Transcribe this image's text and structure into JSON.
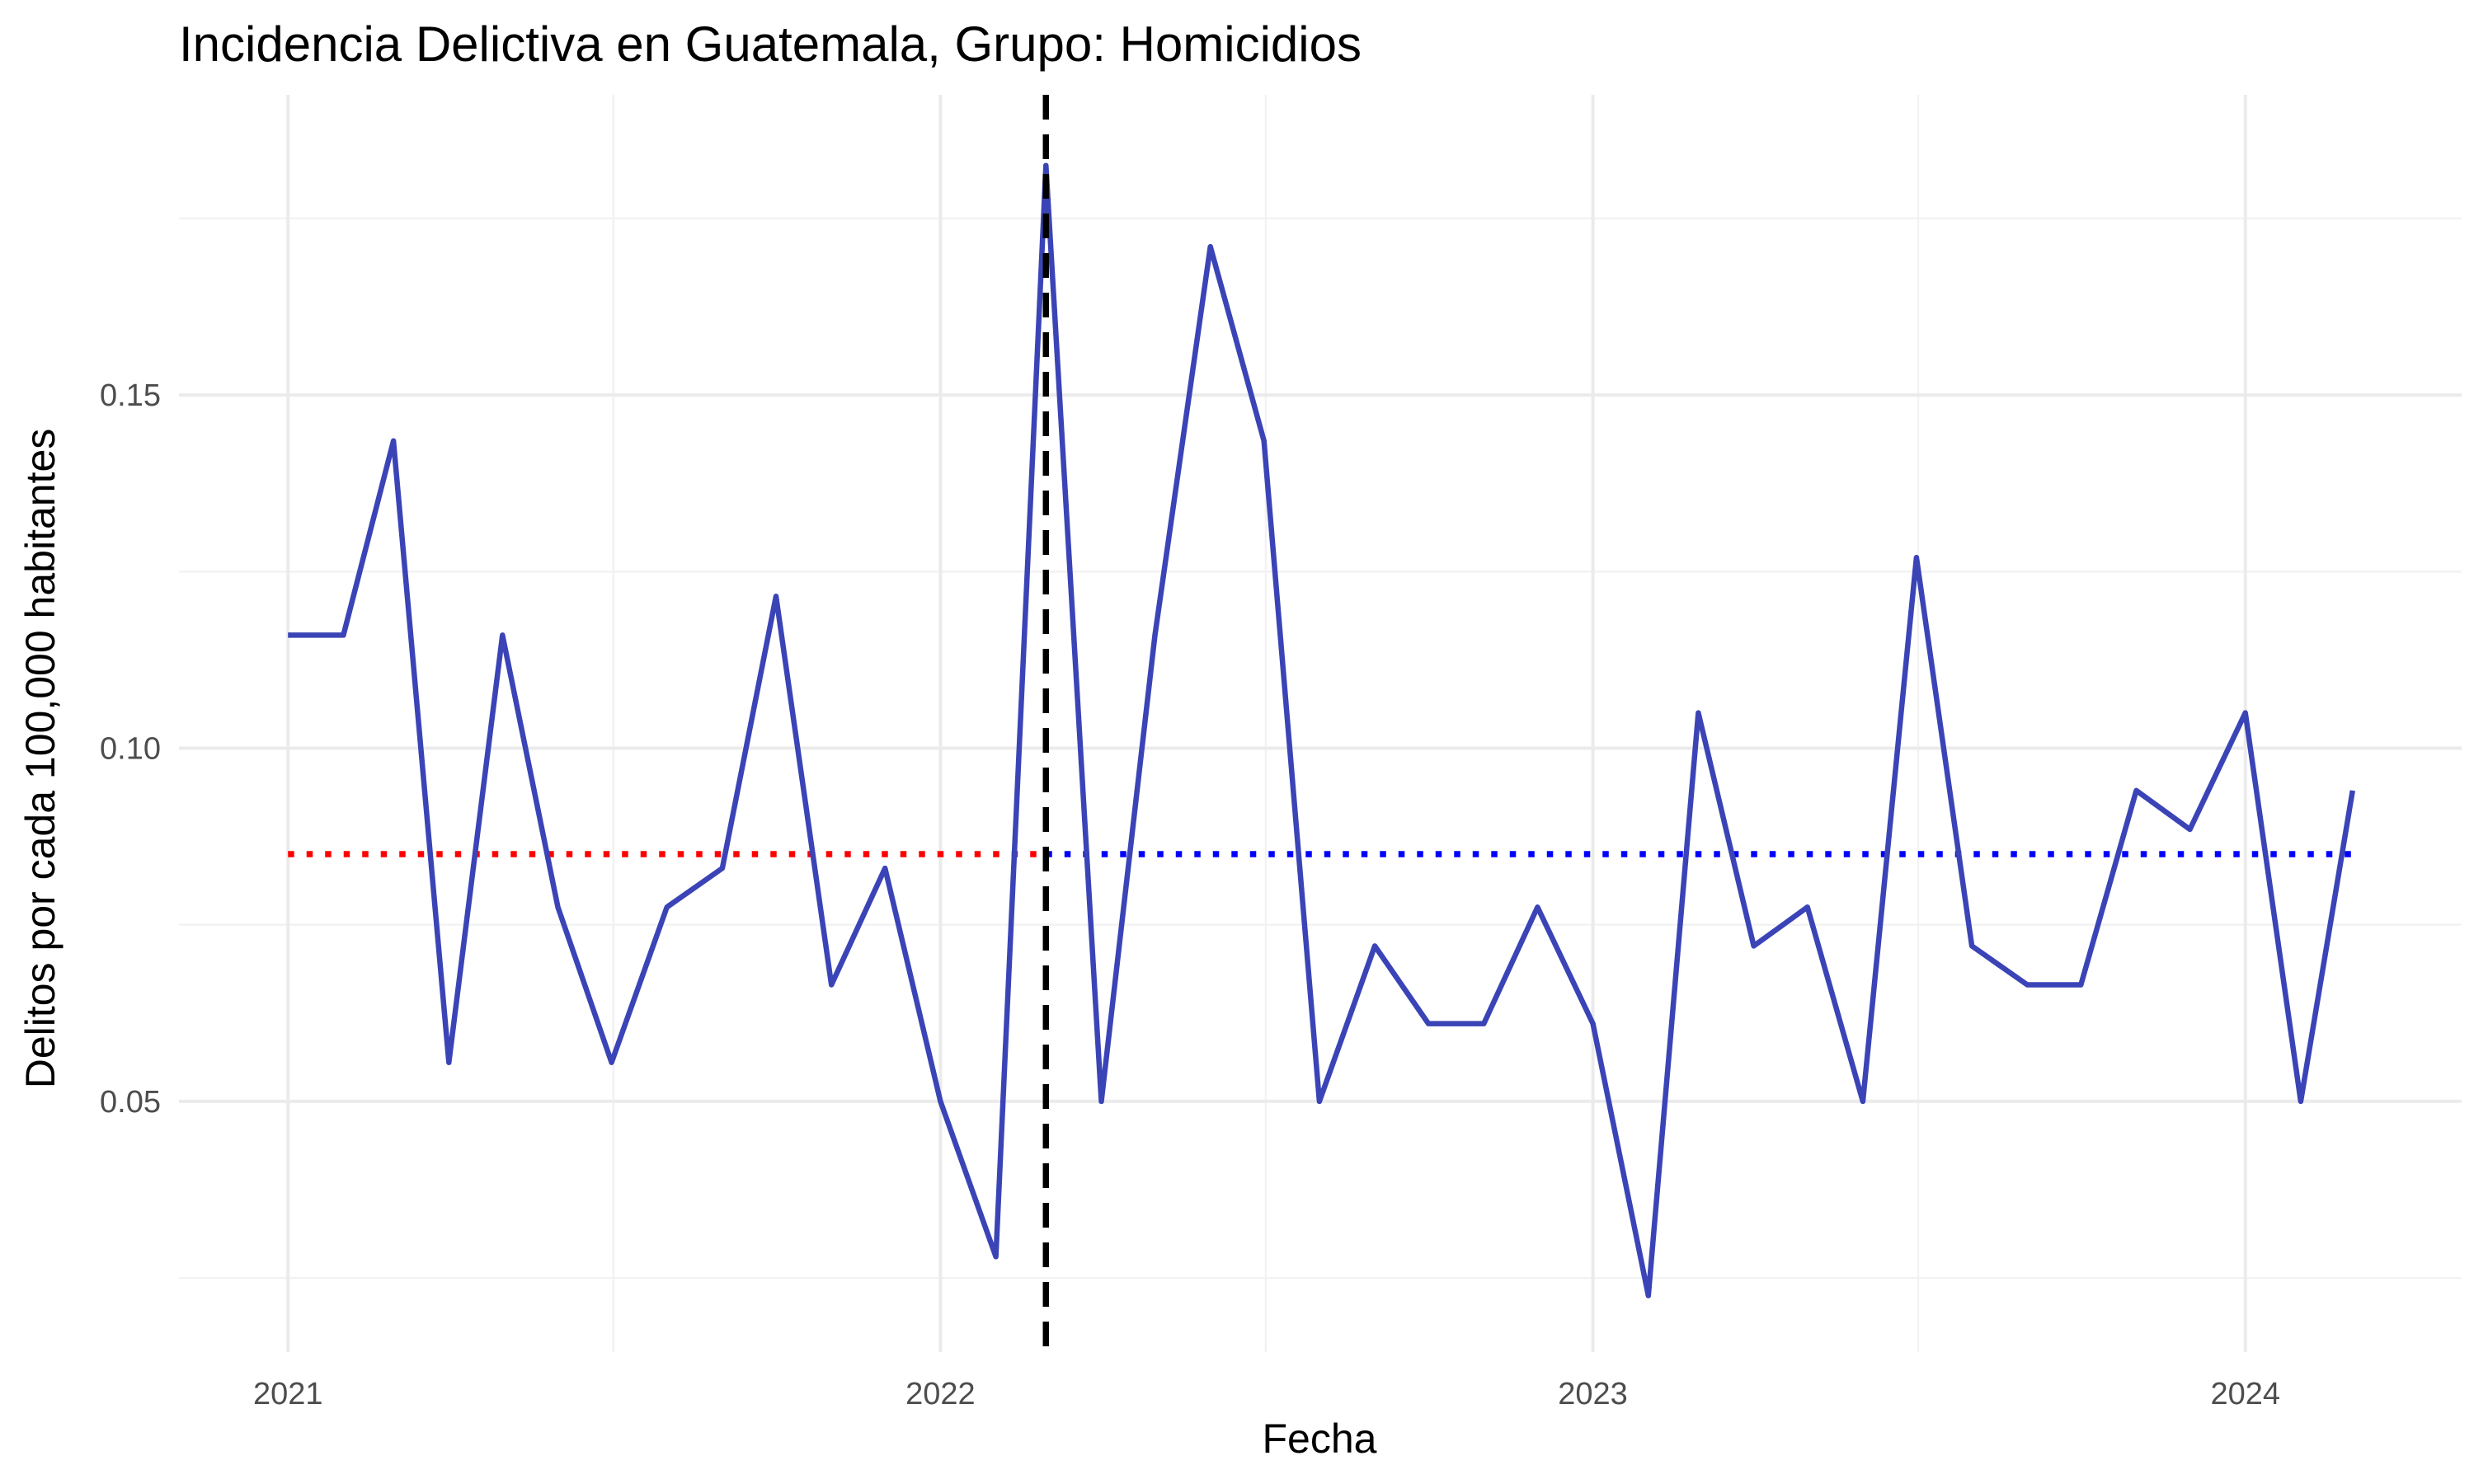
{
  "chart_data": {
    "type": "line",
    "title": "Incidencia Delictiva en Guatemala, Grupo: Homicidios",
    "xlabel": "Fecha",
    "ylabel": "Delitos por cada 100,000 habitantes",
    "x_ticks": [
      "2021",
      "2022",
      "2023",
      "2024"
    ],
    "y_ticks": [
      "0.05",
      "0.10",
      "0.15"
    ],
    "xlim": [
      "2020-11-01",
      "2024-05-01"
    ],
    "ylim": [
      0.0145,
      0.1925
    ],
    "grid": true,
    "series": [
      {
        "color": "#3b44b6",
        "x": [
          "2021-01-01",
          "2021-02-01",
          "2021-03-01",
          "2021-04-01",
          "2021-05-01",
          "2021-06-01",
          "2021-07-01",
          "2021-08-01",
          "2021-09-01",
          "2021-10-01",
          "2021-11-01",
          "2021-12-01",
          "2022-01-01",
          "2022-02-01",
          "2022-03-01",
          "2022-04-01",
          "2022-05-01",
          "2022-06-01",
          "2022-07-01",
          "2022-08-01",
          "2022-09-01",
          "2022-10-01",
          "2022-11-01",
          "2022-12-01",
          "2023-01-01",
          "2023-02-01",
          "2023-03-01",
          "2023-04-01",
          "2023-05-01",
          "2023-06-01",
          "2023-07-01",
          "2023-08-01",
          "2023-09-01",
          "2023-10-01",
          "2023-11-01",
          "2023-12-01",
          "2024-01-01",
          "2024-02-01",
          "2024-03-01"
        ],
        "values": [
          0.116,
          0.116,
          0.1435,
          0.0555,
          0.116,
          0.0775,
          0.0555,
          0.0775,
          0.083,
          0.1215,
          0.0665,
          0.083,
          0.05,
          0.028,
          0.1825,
          0.05,
          0.116,
          0.171,
          0.1435,
          0.05,
          0.072,
          0.061,
          0.061,
          0.0775,
          0.061,
          0.0225,
          0.105,
          0.072,
          0.0775,
          0.05,
          0.127,
          0.072,
          0.0665,
          0.0665,
          0.094,
          0.0885,
          0.105,
          0.05,
          0.094
        ]
      }
    ],
    "reference_lines": [
      {
        "orientation": "vertical",
        "x": "2022-03-01",
        "style": "dashed",
        "color": "#000000"
      },
      {
        "orientation": "horizontal",
        "y": 0.085,
        "x_from": "2021-01-01",
        "x_to": "2022-03-01",
        "style": "dotted",
        "color": "#ff0000"
      },
      {
        "orientation": "horizontal",
        "y": 0.085,
        "x_from": "2022-03-01",
        "x_to": "2024-03-01",
        "style": "dotted",
        "color": "#0000ff"
      }
    ]
  }
}
